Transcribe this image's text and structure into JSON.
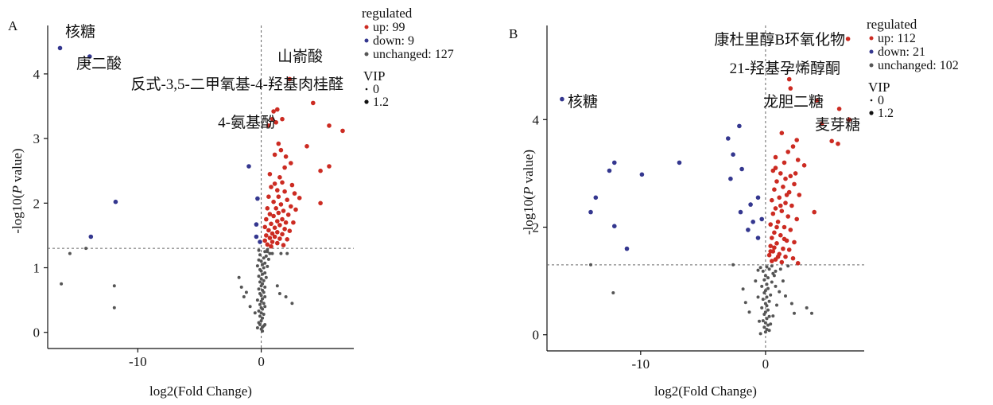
{
  "chart_data": [
    {
      "type": "scatter",
      "panel_label": "A",
      "xlabel": "log2(Fold Change)",
      "ylabel_prefix": "-log10(",
      "ylabel_italic": "P",
      "ylabel_suffix": " value)",
      "xlim": [
        -17.3,
        7.5
      ],
      "ylim": [
        -0.25,
        4.75
      ],
      "xticks": [
        -10,
        0
      ],
      "yticks": [
        0,
        1,
        2,
        3,
        4
      ],
      "threshold_y": 1.3,
      "threshold_x": 0,
      "colors": {
        "up": "#cc2b22",
        "down": "#34378f",
        "unchanged": "#555555"
      },
      "legend": {
        "title": "regulated",
        "items": [
          {
            "key": "up",
            "label": "up: 99"
          },
          {
            "key": "down",
            "label": "down: 9"
          },
          {
            "key": "unchanged",
            "label": "unchanged: 127"
          }
        ],
        "vip_title": "VIP",
        "vip_items": [
          "0",
          "1.2"
        ]
      },
      "annotations": [
        {
          "text": "核糖",
          "x": -16.3,
          "y": 4.4
        },
        {
          "text": "庚二酸",
          "x": -13.9,
          "y": 4.27
        },
        {
          "text": "山嵛酸",
          "x": 2.3,
          "y": 3.92
        },
        {
          "text": "反式-3,5-二甲氧基-4-羟基肉桂醛",
          "x": 4.2,
          "y": 3.55
        },
        {
          "text": "4-氨基酚",
          "x": 0.5,
          "y": 3.22
        }
      ],
      "down_points": [
        [
          -16.3,
          4.4
        ],
        [
          -13.9,
          4.27
        ],
        [
          -11.8,
          2.02
        ],
        [
          -13.8,
          1.48
        ],
        [
          -1.0,
          2.57
        ],
        [
          -0.3,
          2.07
        ],
        [
          -0.4,
          1.67
        ],
        [
          -0.4,
          1.48
        ],
        [
          -0.1,
          1.4
        ]
      ],
      "up_points": [
        [
          2.3,
          3.92
        ],
        [
          4.2,
          3.55
        ],
        [
          5.5,
          3.2
        ],
        [
          6.6,
          3.12
        ],
        [
          1.0,
          3.42
        ],
        [
          1.3,
          3.45
        ],
        [
          0.9,
          3.3
        ],
        [
          1.7,
          3.3
        ],
        [
          1.2,
          3.25
        ],
        [
          0.6,
          3.2
        ],
        [
          3.7,
          2.88
        ],
        [
          1.4,
          2.92
        ],
        [
          1.6,
          2.82
        ],
        [
          1.1,
          2.75
        ],
        [
          2.0,
          2.72
        ],
        [
          2.4,
          2.62
        ],
        [
          5.5,
          2.57
        ],
        [
          1.9,
          2.55
        ],
        [
          0.7,
          2.45
        ],
        [
          4.8,
          2.5
        ],
        [
          1.5,
          2.4
        ],
        [
          1.7,
          2.32
        ],
        [
          1.1,
          2.3
        ],
        [
          2.5,
          2.28
        ],
        [
          0.8,
          2.25
        ],
        [
          1.3,
          2.2
        ],
        [
          1.9,
          2.18
        ],
        [
          2.7,
          2.15
        ],
        [
          1.4,
          2.1
        ],
        [
          0.6,
          2.1
        ],
        [
          2.1,
          2.05
        ],
        [
          3.1,
          2.08
        ],
        [
          4.8,
          2.0
        ],
        [
          1.0,
          2.02
        ],
        [
          1.6,
          1.98
        ],
        [
          2.4,
          1.95
        ],
        [
          0.5,
          1.92
        ],
        [
          1.2,
          1.92
        ],
        [
          1.8,
          1.88
        ],
        [
          2.8,
          1.9
        ],
        [
          1.4,
          1.85
        ],
        [
          0.7,
          1.83
        ],
        [
          2.2,
          1.82
        ],
        [
          1.0,
          1.8
        ],
        [
          1.7,
          1.75
        ],
        [
          0.4,
          1.75
        ],
        [
          1.3,
          1.72
        ],
        [
          2.0,
          1.7
        ],
        [
          2.6,
          1.7
        ],
        [
          0.8,
          1.68
        ],
        [
          1.5,
          1.66
        ],
        [
          0.3,
          1.63
        ],
        [
          1.1,
          1.62
        ],
        [
          1.9,
          1.6
        ],
        [
          0.6,
          1.58
        ],
        [
          2.3,
          1.57
        ],
        [
          1.3,
          1.55
        ],
        [
          0.9,
          1.53
        ],
        [
          1.7,
          1.52
        ],
        [
          0.4,
          1.5
        ],
        [
          1.1,
          1.48
        ],
        [
          0.7,
          1.46
        ],
        [
          1.5,
          1.45
        ],
        [
          2.1,
          1.44
        ],
        [
          0.3,
          1.42
        ],
        [
          0.9,
          1.4
        ],
        [
          1.3,
          1.38
        ],
        [
          0.5,
          1.36
        ],
        [
          1.8,
          1.35
        ],
        [
          0.8,
          1.33
        ]
      ],
      "unchanged_points": [
        [
          -15.5,
          1.22
        ],
        [
          -14.2,
          1.3
        ],
        [
          -16.2,
          0.75
        ],
        [
          -11.9,
          0.72
        ],
        [
          -11.9,
          0.38
        ],
        [
          -1.8,
          0.85
        ],
        [
          -1.6,
          0.7
        ],
        [
          -1.4,
          0.55
        ],
        [
          -1.2,
          0.62
        ],
        [
          -0.9,
          0.4
        ],
        [
          1.3,
          0.72
        ],
        [
          1.5,
          0.6
        ],
        [
          2.0,
          0.55
        ],
        [
          2.5,
          0.45
        ],
        [
          -0.5,
          0.3
        ],
        [
          0.9,
          1.22
        ],
        [
          1.6,
          1.22
        ],
        [
          2.1,
          1.22
        ],
        [
          0.5,
          1.25
        ],
        [
          0.0,
          0.05
        ],
        [
          0.1,
          0.08
        ],
        [
          -0.1,
          0.12
        ],
        [
          0.2,
          0.1
        ],
        [
          -0.2,
          0.15
        ],
        [
          0.0,
          0.18
        ],
        [
          0.1,
          0.22
        ],
        [
          -0.1,
          0.25
        ],
        [
          0.2,
          0.28
        ],
        [
          0.0,
          0.3
        ],
        [
          -0.2,
          0.33
        ],
        [
          0.1,
          0.36
        ],
        [
          0.0,
          0.38
        ],
        [
          0.3,
          0.4
        ],
        [
          -0.1,
          0.43
        ],
        [
          0.2,
          0.45
        ],
        [
          0.0,
          0.48
        ],
        [
          -0.3,
          0.5
        ],
        [
          0.1,
          0.52
        ],
        [
          0.3,
          0.55
        ],
        [
          0.0,
          0.57
        ],
        [
          -0.1,
          0.6
        ],
        [
          0.2,
          0.62
        ],
        [
          0.1,
          0.65
        ],
        [
          -0.2,
          0.67
        ],
        [
          0.3,
          0.7
        ],
        [
          0.0,
          0.72
        ],
        [
          0.1,
          0.75
        ],
        [
          -0.1,
          0.78
        ],
        [
          0.2,
          0.8
        ],
        [
          0.0,
          0.83
        ],
        [
          0.4,
          0.85
        ],
        [
          -0.2,
          0.87
        ],
        [
          0.1,
          0.9
        ],
        [
          0.3,
          0.92
        ],
        [
          0.0,
          0.95
        ],
        [
          -0.1,
          0.97
        ],
        [
          0.2,
          1.0
        ],
        [
          0.5,
          1.02
        ],
        [
          -0.3,
          1.03
        ],
        [
          0.1,
          1.05
        ],
        [
          0.3,
          1.07
        ],
        [
          0.0,
          1.1
        ],
        [
          -0.2,
          1.12
        ],
        [
          0.6,
          1.13
        ],
        [
          0.2,
          1.15
        ],
        [
          0.4,
          1.18
        ],
        [
          -0.1,
          1.2
        ],
        [
          0.7,
          1.22
        ],
        [
          0.3,
          1.25
        ],
        [
          -0.2,
          1.27
        ],
        [
          0.5,
          1.28
        ],
        [
          0.1,
          0.02
        ],
        [
          0.3,
          0.12
        ],
        [
          -0.3,
          0.07
        ]
      ]
    },
    {
      "type": "scatter",
      "panel_label": "B",
      "xlabel": "log2(Fold Change)",
      "ylabel_prefix": "-log10(",
      "ylabel_italic": "P",
      "ylabel_suffix": " value)",
      "xlim": [
        -17.5,
        7.9
      ],
      "ylim": [
        -0.3,
        5.75
      ],
      "xticks": [
        -10,
        0
      ],
      "yticks": [
        0,
        2,
        4
      ],
      "threshold_y": 1.3,
      "threshold_x": 0,
      "colors": {
        "up": "#cc2b22",
        "down": "#34378f",
        "unchanged": "#555555"
      },
      "legend": {
        "title": "regulated",
        "items": [
          {
            "key": "up",
            "label": "up: 112"
          },
          {
            "key": "down",
            "label": "down: 21"
          },
          {
            "key": "unchanged",
            "label": "unchanged: 102"
          }
        ],
        "vip_title": "VIP",
        "vip_items": [
          "0",
          "1.2"
        ]
      },
      "annotations": [
        {
          "text": "康杜里醇B环氧化物",
          "x": 6.6,
          "y": 5.5
        },
        {
          "text": "21-羟基孕烯醇酮",
          "x": 1.9,
          "y": 4.62
        },
        {
          "text": "龙胆二糖",
          "x": 4.1,
          "y": 4.35
        },
        {
          "text": "核糖",
          "x": -16.3,
          "y": 4.38
        },
        {
          "text": "麦芽糖",
          "x": 5.9,
          "y": 4.2
        }
      ],
      "down_points": [
        [
          -16.3,
          4.38
        ],
        [
          -2.1,
          3.88
        ],
        [
          -3.0,
          3.65
        ],
        [
          -6.9,
          3.2
        ],
        [
          -12.1,
          3.2
        ],
        [
          -12.5,
          3.05
        ],
        [
          -9.9,
          2.98
        ],
        [
          -2.6,
          3.35
        ],
        [
          -2.8,
          2.9
        ],
        [
          -1.9,
          3.08
        ],
        [
          -13.6,
          2.55
        ],
        [
          -14.0,
          2.28
        ],
        [
          -2.0,
          2.28
        ],
        [
          -0.6,
          2.55
        ],
        [
          -1.2,
          2.42
        ],
        [
          -12.1,
          2.02
        ],
        [
          -1.4,
          1.95
        ],
        [
          -11.1,
          1.6
        ],
        [
          -0.6,
          1.8
        ],
        [
          -0.3,
          2.15
        ],
        [
          -1.0,
          2.1
        ]
      ],
      "up_points": [
        [
          6.6,
          5.5
        ],
        [
          1.9,
          4.75
        ],
        [
          2.0,
          4.58
        ],
        [
          4.1,
          4.35
        ],
        [
          5.9,
          4.2
        ],
        [
          6.7,
          4.0
        ],
        [
          4.5,
          3.92
        ],
        [
          5.3,
          3.6
        ],
        [
          5.8,
          3.55
        ],
        [
          2.5,
          3.62
        ],
        [
          1.3,
          3.75
        ],
        [
          2.2,
          3.5
        ],
        [
          1.8,
          3.4
        ],
        [
          0.8,
          3.3
        ],
        [
          2.6,
          3.25
        ],
        [
          1.5,
          3.2
        ],
        [
          3.1,
          3.15
        ],
        [
          0.6,
          3.05
        ],
        [
          1.2,
          3.0
        ],
        [
          2.0,
          2.95
        ],
        [
          1.6,
          2.9
        ],
        [
          0.9,
          2.85
        ],
        [
          2.3,
          2.8
        ],
        [
          1.4,
          2.75
        ],
        [
          0.7,
          2.7
        ],
        [
          1.9,
          2.65
        ],
        [
          2.7,
          2.6
        ],
        [
          1.1,
          2.55
        ],
        [
          0.5,
          2.5
        ],
        [
          1.6,
          2.45
        ],
        [
          2.1,
          2.4
        ],
        [
          0.8,
          2.35
        ],
        [
          1.3,
          2.3
        ],
        [
          3.9,
          2.28
        ],
        [
          0.6,
          2.25
        ],
        [
          1.8,
          2.2
        ],
        [
          2.5,
          2.15
        ],
        [
          1.0,
          2.1
        ],
        [
          0.4,
          2.05
        ],
        [
          1.5,
          2.0
        ],
        [
          2.0,
          1.95
        ],
        [
          0.7,
          1.9
        ],
        [
          1.2,
          1.85
        ],
        [
          0.5,
          1.8
        ],
        [
          1.7,
          1.75
        ],
        [
          2.3,
          1.72
        ],
        [
          0.9,
          1.7
        ],
        [
          0.4,
          1.65
        ],
        [
          1.4,
          1.6
        ],
        [
          1.9,
          1.58
        ],
        [
          0.6,
          1.55
        ],
        [
          1.1,
          1.5
        ],
        [
          0.3,
          1.48
        ],
        [
          1.6,
          1.45
        ],
        [
          2.2,
          1.42
        ],
        [
          0.8,
          1.4
        ],
        [
          0.5,
          1.37
        ],
        [
          1.3,
          1.35
        ],
        [
          2.6,
          1.33
        ],
        [
          0.4,
          1.55
        ],
        [
          1.0,
          1.45
        ],
        [
          0.7,
          1.62
        ],
        [
          1.5,
          1.78
        ],
        [
          0.9,
          2.0
        ],
        [
          1.2,
          2.4
        ],
        [
          1.7,
          2.6
        ],
        [
          0.8,
          3.1
        ],
        [
          2.4,
          3.0
        ]
      ],
      "unchanged_points": [
        [
          -14.0,
          1.3
        ],
        [
          -12.2,
          0.78
        ],
        [
          -2.6,
          1.3
        ],
        [
          -1.8,
          0.85
        ],
        [
          -1.6,
          0.6
        ],
        [
          -1.3,
          0.42
        ],
        [
          -0.8,
          1.0
        ],
        [
          -0.5,
          0.25
        ],
        [
          2.1,
          0.58
        ],
        [
          2.3,
          0.4
        ],
        [
          3.3,
          0.5
        ],
        [
          3.7,
          0.4
        ],
        [
          1.6,
          0.72
        ],
        [
          1.2,
          1.22
        ],
        [
          1.8,
          1.28
        ],
        [
          0.0,
          0.05
        ],
        [
          0.1,
          0.1
        ],
        [
          -0.1,
          0.14
        ],
        [
          0.2,
          0.18
        ],
        [
          0.0,
          0.22
        ],
        [
          -0.2,
          0.26
        ],
        [
          0.1,
          0.3
        ],
        [
          0.3,
          0.34
        ],
        [
          -0.1,
          0.38
        ],
        [
          0.0,
          0.42
        ],
        [
          0.2,
          0.46
        ],
        [
          -0.3,
          0.5
        ],
        [
          0.1,
          0.54
        ],
        [
          0.0,
          0.58
        ],
        [
          0.3,
          0.62
        ],
        [
          -0.2,
          0.66
        ],
        [
          0.1,
          0.7
        ],
        [
          0.4,
          0.74
        ],
        [
          -0.1,
          0.78
        ],
        [
          0.0,
          0.82
        ],
        [
          0.2,
          0.86
        ],
        [
          -0.3,
          0.9
        ],
        [
          0.1,
          0.94
        ],
        [
          0.5,
          0.98
        ],
        [
          -0.1,
          1.02
        ],
        [
          0.2,
          1.06
        ],
        [
          0.0,
          1.1
        ],
        [
          0.6,
          1.14
        ],
        [
          -0.2,
          1.18
        ],
        [
          0.3,
          1.22
        ],
        [
          0.1,
          1.26
        ],
        [
          0.8,
          1.18
        ],
        [
          0.5,
          1.28
        ],
        [
          -0.4,
          1.25
        ],
        [
          0.7,
          1.1
        ],
        [
          0.4,
          0.2
        ],
        [
          0.6,
          0.35
        ],
        [
          0.9,
          0.55
        ],
        [
          1.1,
          0.8
        ],
        [
          -0.6,
          0.7
        ],
        [
          0.3,
          0.08
        ],
        [
          -0.4,
          0.02
        ],
        [
          0.8,
          0.9
        ],
        [
          1.4,
          1.0
        ],
        [
          -0.6,
          1.2
        ]
      ]
    }
  ]
}
